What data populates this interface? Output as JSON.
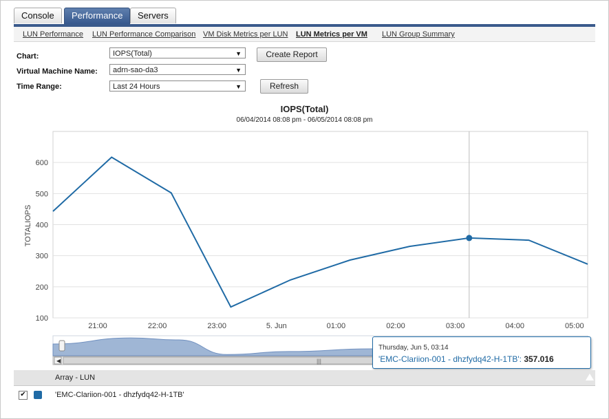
{
  "tabs": [
    {
      "label": "Console",
      "active": false
    },
    {
      "label": "Performance",
      "active": true
    },
    {
      "label": "Servers",
      "active": false
    }
  ],
  "subnav": [
    {
      "label": "LUN Performance",
      "active": false
    },
    {
      "label": "LUN Performance Comparison",
      "active": false
    },
    {
      "label": "VM Disk Metrics per LUN",
      "active": false
    },
    {
      "label": "LUN Metrics per VM",
      "active": true
    },
    {
      "label": "LUN Group Summary",
      "active": false
    }
  ],
  "form": {
    "chart_label": "Chart:",
    "chart_value": "IOPS(Total)",
    "vm_label": "Virtual Machine Name:",
    "vm_value": "adrn-sao-da3",
    "range_label": "Time Range:",
    "range_value": "Last 24 Hours",
    "create_report": "Create Report",
    "refresh": "Refresh"
  },
  "chart_data": {
    "type": "line",
    "title": "IOPS(Total)",
    "subtitle": "06/04/2014 08:08 pm - 06/05/2014 08:08 pm",
    "ylabel": "TOTALIOPS",
    "xlabel": "",
    "y_ticks": [
      100,
      200,
      300,
      400,
      500,
      600
    ],
    "ylim": [
      100,
      700
    ],
    "x_ticks": [
      "21:00",
      "22:00",
      "23:00",
      "5. Jun",
      "01:00",
      "02:00",
      "03:00",
      "04:00",
      "05:00"
    ],
    "grid": true,
    "series": [
      {
        "name": "'EMC-Clariion-001 - dhzfydq42-H-1TB'",
        "color": "#1f6aa5",
        "x": [
          "20:14",
          "21:14",
          "22:14",
          "23:14",
          "00:14",
          "01:14",
          "02:14",
          "03:14",
          "04:14",
          "05:14"
        ],
        "values": [
          440,
          617,
          502,
          135,
          222,
          286,
          330,
          357,
          350,
          272
        ]
      }
    ],
    "highlight_index": 7
  },
  "tooltip": {
    "date": "Thursday, Jun 5, 03:14",
    "series": "'EMC-Clariion-001 - dhzfydq42-H-1TB'",
    "value": "357.016"
  },
  "table": {
    "header": "Array - LUN",
    "rows": [
      {
        "name": "'EMC-Clariion-001 - dhzfydq42-H-1TB'",
        "checked": true,
        "color": "#1f6aa5"
      }
    ]
  },
  "navigator_scroll_glyph": "|||"
}
